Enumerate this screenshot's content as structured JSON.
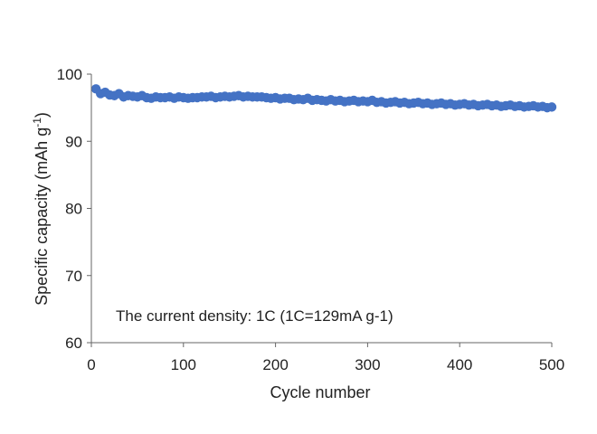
{
  "chart_data": {
    "type": "scatter",
    "title": "",
    "xlabel": "Cycle number",
    "ylabel": {
      "main": "Specific capacity (mAh g",
      "superscript": "-1",
      "close": ")"
    },
    "annotation": "The current density: 1C (1C=129mA g-1)",
    "xlim": [
      0,
      500
    ],
    "ylim": [
      60,
      100
    ],
    "xticks": [
      0,
      100,
      200,
      300,
      400,
      500
    ],
    "yticks": [
      60,
      70,
      80,
      90,
      100
    ],
    "grid": false,
    "legend": "none",
    "marker_color": "#4472c4",
    "series": [
      {
        "x": [
          5,
          10,
          15,
          20,
          25,
          30,
          35,
          40,
          45,
          50,
          55,
          60,
          65,
          70,
          75,
          80,
          85,
          90,
          95,
          100,
          105,
          110,
          115,
          120,
          125,
          130,
          135,
          140,
          145,
          150,
          155,
          160,
          165,
          170,
          175,
          180,
          185,
          190,
          195,
          200,
          205,
          210,
          215,
          220,
          225,
          230,
          235,
          240,
          245,
          250,
          255,
          260,
          265,
          270,
          275,
          280,
          285,
          290,
          295,
          300,
          305,
          310,
          315,
          320,
          325,
          330,
          335,
          340,
          345,
          350,
          355,
          360,
          365,
          370,
          375,
          380,
          385,
          390,
          395,
          400,
          405,
          410,
          415,
          420,
          425,
          430,
          435,
          440,
          445,
          450,
          455,
          460,
          465,
          470,
          475,
          480,
          485,
          490,
          495,
          500
        ],
        "y": [
          97.8,
          97.1,
          97.3,
          96.9,
          96.8,
          97.1,
          96.6,
          96.8,
          96.7,
          96.6,
          96.8,
          96.5,
          96.4,
          96.6,
          96.5,
          96.5,
          96.6,
          96.4,
          96.6,
          96.5,
          96.4,
          96.5,
          96.5,
          96.6,
          96.6,
          96.7,
          96.5,
          96.6,
          96.7,
          96.6,
          96.7,
          96.8,
          96.6,
          96.7,
          96.6,
          96.6,
          96.6,
          96.5,
          96.4,
          96.5,
          96.3,
          96.4,
          96.4,
          96.2,
          96.3,
          96.2,
          96.4,
          96.1,
          96.2,
          96.1,
          96.0,
          96.2,
          96.0,
          96.1,
          95.9,
          96.0,
          96.1,
          95.9,
          96.0,
          95.9,
          96.1,
          95.8,
          95.9,
          95.7,
          95.8,
          95.9,
          95.7,
          95.8,
          95.6,
          95.7,
          95.8,
          95.6,
          95.7,
          95.5,
          95.6,
          95.7,
          95.5,
          95.6,
          95.4,
          95.5,
          95.6,
          95.4,
          95.5,
          95.3,
          95.4,
          95.5,
          95.3,
          95.4,
          95.2,
          95.3,
          95.4,
          95.2,
          95.3,
          95.1,
          95.2,
          95.3,
          95.1,
          95.2,
          95.0,
          95.1
        ]
      }
    ]
  }
}
